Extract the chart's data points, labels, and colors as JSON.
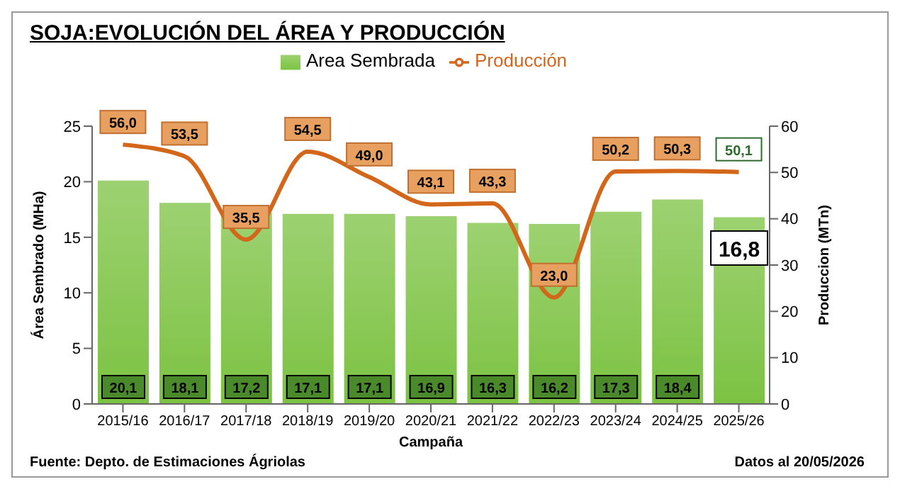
{
  "chart_data": {
    "type": "bar",
    "title": "SOJA:EVOLUCIÓN DEL ÁREA Y PRODUCCIÓN",
    "xlabel": "Campaña",
    "ylabel": "Área Sembrado (MHa)",
    "y2label": "Produccion (MTn)",
    "categories": [
      "2015/16",
      "2016/17",
      "2017/18",
      "2018/19",
      "2019/20",
      "2020/21",
      "2021/22",
      "2022/23",
      "2023/24",
      "2024/25",
      "2025/26"
    ],
    "series": [
      {
        "name": "Area Sembrada",
        "color": "#7cc242",
        "values": [
          20.1,
          18.1,
          17.2,
          17.1,
          17.1,
          16.9,
          16.3,
          16.2,
          17.3,
          18.4,
          16.8
        ],
        "value_labels": [
          "20,1",
          "18,1",
          "17,2",
          "17,1",
          "17,1",
          "16,9",
          "16,3",
          "16,2",
          "17,3",
          "18,4",
          "16,8"
        ]
      },
      {
        "name": "Producción",
        "type": "line",
        "axis": "y2",
        "color": "#d4661a",
        "values": [
          56.0,
          53.5,
          35.5,
          54.5,
          49.0,
          43.1,
          43.3,
          23.0,
          50.2,
          50.3,
          50.1
        ],
        "value_labels": [
          "56,0",
          "53,5",
          "35,5",
          "54,5",
          "49,0",
          "43,1",
          "43,3",
          "23,0",
          "50,2",
          "50,3",
          "50,1"
        ]
      }
    ],
    "ylim": [
      0,
      25
    ],
    "yticks": [
      0,
      5,
      10,
      15,
      20,
      25
    ],
    "y2lim": [
      0,
      60
    ],
    "y2ticks": [
      0,
      10,
      20,
      30,
      40,
      50,
      60
    ],
    "grid": false,
    "legend": "top",
    "marker": "none",
    "line_style": "solid",
    "annotations": [
      "Fuente: Depto. de Estimaciones Ágriolas",
      "Datos al 20/05/2026"
    ]
  }
}
